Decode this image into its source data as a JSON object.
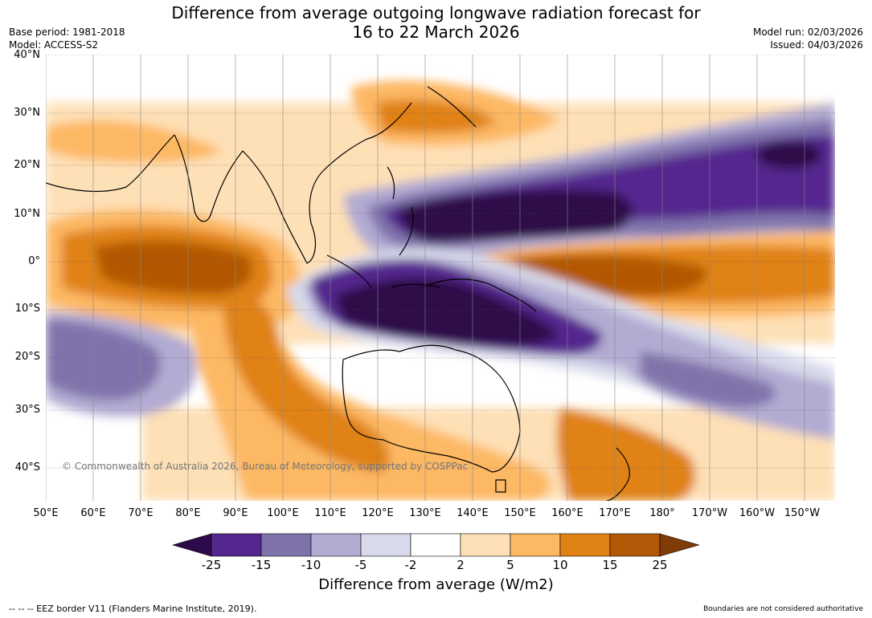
{
  "header": {
    "title_line1": "Difference from average outgoing longwave radiation forecast for",
    "title_line2": "16 to 22 March 2026",
    "base_period": "Base period: 1981-2018",
    "model": "Model: ACCESS-S2",
    "model_run": "Model run: 02/03/2026",
    "issued": "Issued: 04/03/2026"
  },
  "map": {
    "region": "Indo-Pacific",
    "lat_labels": [
      "40°N",
      "30°N",
      "20°N",
      "10°N",
      "0°",
      "10°S",
      "20°S",
      "30°S",
      "40°S"
    ],
    "lon_labels": [
      "50°E",
      "60°E",
      "70°E",
      "80°E",
      "90°E",
      "100°E",
      "110°E",
      "120°E",
      "130°E",
      "140°E",
      "150°E",
      "160°E",
      "170°E",
      "180°",
      "170°W",
      "160°W",
      "150°W"
    ],
    "copyright": "© Commonwealth of Australia 2026, Bureau of Meteorology, supported by COSPPac"
  },
  "colorbar": {
    "title": "Difference from average (W/m2)",
    "labels": [
      "-25",
      "-15",
      "-10",
      "-5",
      "-2",
      "2",
      "5",
      "10",
      "15",
      "25"
    ],
    "colors": [
      "#2d0a4a",
      "#54278f",
      "#8073ac",
      "#b2abd2",
      "#d8daeb",
      "#ffffff",
      "#fee0b6",
      "#fdb863",
      "#e08214",
      "#b35806",
      "#7f3b08"
    ]
  },
  "footer": {
    "eez_note": "--  --  -- EEZ border V11 (Flanders Marine Institute, 2019).",
    "disclaimer": "Boundaries are not considered authoritative"
  }
}
